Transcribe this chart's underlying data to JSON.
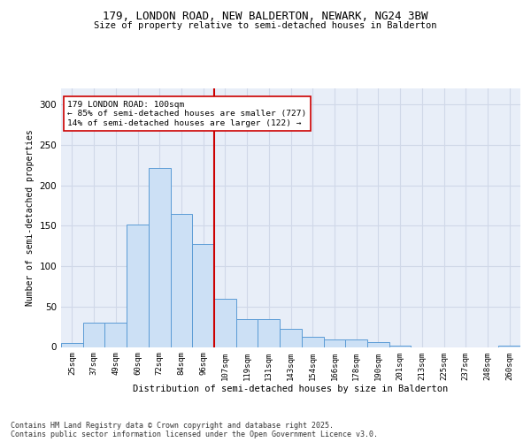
{
  "title_line1": "179, LONDON ROAD, NEW BALDERTON, NEWARK, NG24 3BW",
  "title_line2": "Size of property relative to semi-detached houses in Balderton",
  "xlabel": "Distribution of semi-detached houses by size in Balderton",
  "ylabel": "Number of semi-detached properties",
  "categories": [
    "25sqm",
    "37sqm",
    "49sqm",
    "60sqm",
    "72sqm",
    "84sqm",
    "96sqm",
    "107sqm",
    "119sqm",
    "131sqm",
    "143sqm",
    "154sqm",
    "166sqm",
    "178sqm",
    "190sqm",
    "201sqm",
    "213sqm",
    "225sqm",
    "237sqm",
    "248sqm",
    "260sqm"
  ],
  "values": [
    5,
    30,
    30,
    152,
    222,
    165,
    128,
    60,
    35,
    35,
    22,
    13,
    9,
    9,
    6,
    2,
    0,
    0,
    0,
    0,
    2
  ],
  "bar_color": "#cce0f5",
  "bar_edge_color": "#5b9bd5",
  "grid_color": "#d0d8e8",
  "background_color": "#e8eef8",
  "vline_index": 7,
  "vline_color": "#cc0000",
  "annotation_text": "179 LONDON ROAD: 100sqm\n← 85% of semi-detached houses are smaller (727)\n14% of semi-detached houses are larger (122) →",
  "annotation_box_color": "#ffffff",
  "annotation_box_edge": "#cc0000",
  "footer_text": "Contains HM Land Registry data © Crown copyright and database right 2025.\nContains public sector information licensed under the Open Government Licence v3.0.",
  "ylim": [
    0,
    320
  ],
  "yticks": [
    0,
    50,
    100,
    150,
    200,
    250,
    300
  ]
}
